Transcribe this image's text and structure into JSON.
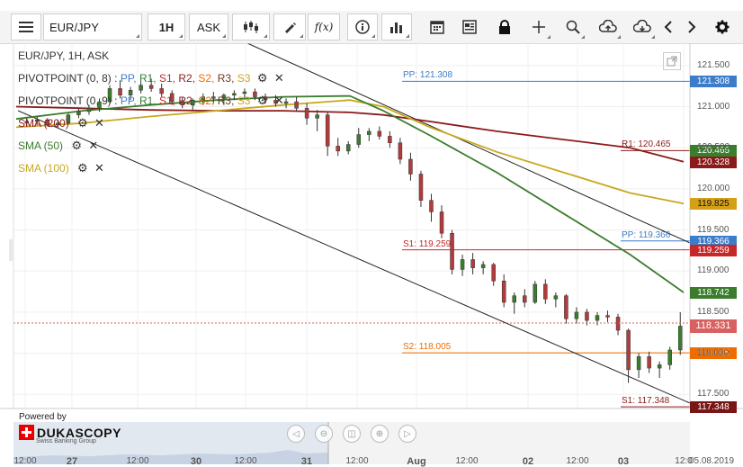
{
  "toolbar": {
    "instrument": "EUR/JPY",
    "timeframe": "1H",
    "side": "ASK",
    "indicator_icon_label": "f(x)"
  },
  "legend": {
    "title": "EUR/JPY, 1H, ASK",
    "pivots": [
      {
        "name": "PIVOTPOINT (0, 8)",
        "sep": " : ",
        "items": [
          "PP,",
          "R1,",
          "S1,",
          "R2,",
          "S2,",
          "R3,",
          "S3"
        ]
      },
      {
        "name": "PIVOTPOINT (0, 9)",
        "sep": " : ",
        "items": [
          "PP,",
          "R1,",
          "S1,",
          "R2,",
          "S2,",
          "R3,",
          "S3"
        ]
      }
    ],
    "smas": [
      {
        "label": "SMA (200)",
        "color": "#8b1a1a"
      },
      {
        "label": "SMA (50)",
        "color": "#3a7d2c"
      },
      {
        "label": "SMA (100)",
        "color": "#c9a820"
      }
    ]
  },
  "colors": {
    "pp": "#3d7cc9",
    "r1": "#2e7d32",
    "s1": "#c62828",
    "r2": "#8d1b1b",
    "s2": "#ef6c00",
    "r3": "#6d3b1e",
    "s3": "#d4a017",
    "sma200": "#8b1a1a",
    "sma50": "#3a7d2c",
    "sma100": "#c9a820",
    "bull": "#3a7d2c",
    "bear": "#b23b3b"
  },
  "pivot_levels": [
    {
      "text": "PP: 121.308",
      "value": 121.308,
      "color": "#3d7cc9"
    },
    {
      "text": "R1: 120.465",
      "value": 120.465,
      "color": "#8d1b1b"
    },
    {
      "text": "PP: 119.366",
      "value": 119.366,
      "color": "#3d7cc9"
    },
    {
      "text": "S1: 119.259",
      "value": 119.259,
      "color": "#c62828"
    },
    {
      "text": "S2: 118.005",
      "value": 118.005,
      "color": "#ef6c00"
    },
    {
      "text": "S1: 117.348",
      "value": 117.348,
      "color": "#8d1b1b"
    }
  ],
  "price_tags": [
    {
      "text": "121.308",
      "value": 121.308,
      "bg": "#3d7cc9",
      "fg": "#ffffff"
    },
    {
      "text": "120.465",
      "value": 120.465,
      "bg": "#3a7d2c",
      "fg": "#ffffff"
    },
    {
      "text": "120.328",
      "value": 120.328,
      "bg": "#8b1a1a",
      "fg": "#ffffff"
    },
    {
      "text": "119.825",
      "value": 119.825,
      "bg": "#d4a017",
      "fg": "#111111"
    },
    {
      "text": "119.366",
      "value": 119.366,
      "bg": "#3d7cc9",
      "fg": "#ffffff"
    },
    {
      "text": "119.259",
      "value": 119.259,
      "bg": "#c62828",
      "fg": "#ffffff"
    },
    {
      "text": "118.742",
      "value": 118.742,
      "bg": "#3a7d2c",
      "fg": "#ffffff"
    },
    {
      "text": "118.331",
      "value": 118.331,
      "bg": "#d96060",
      "fg": "#ffffff"
    },
    {
      "text": "118.005",
      "value": 118.005,
      "bg": "#ef6c00",
      "fg": "#ffffff"
    },
    {
      "text": "117.348",
      "value": 117.348,
      "bg": "#7a1515",
      "fg": "#ffffff"
    }
  ],
  "y_axis": {
    "ticks": [
      "121.500",
      "121.000",
      "120.500",
      "120.000",
      "119.500",
      "119.000",
      "118.500",
      "118.000",
      "117.500"
    ],
    "tick_values": [
      121.5,
      121.0,
      120.5,
      120.0,
      119.5,
      119.0,
      118.5,
      118.0,
      117.5
    ],
    "range": [
      117.35,
      121.75
    ]
  },
  "x_axis": {
    "labels": [
      "12:00",
      "27",
      "12:00",
      "30",
      "12:00",
      "31",
      "12:00",
      "Aug",
      "12:00",
      "02",
      "12:00",
      "03",
      "12:0",
      "05.08.2019"
    ],
    "bold": [
      false,
      true,
      false,
      true,
      false,
      true,
      false,
      true,
      false,
      true,
      false,
      true,
      false,
      false
    ]
  },
  "branding": {
    "powered_by": "Powered by",
    "brand": "DUKASCOPY",
    "tagline": "Swiss Banking Group"
  },
  "chart_data": {
    "type": "candlestick",
    "current_price": 118.331,
    "sma200": [
      121.0,
      120.98,
      120.96,
      120.95,
      120.95,
      120.93,
      120.9,
      120.82,
      120.7,
      120.6,
      120.5,
      120.33
    ],
    "sma50": [
      120.85,
      120.95,
      121.02,
      121.08,
      121.12,
      121.13,
      120.95,
      120.65,
      120.2,
      119.7,
      119.2,
      118.74
    ],
    "sma100": [
      120.75,
      120.8,
      120.88,
      120.95,
      121.02,
      121.08,
      121.0,
      120.75,
      120.45,
      120.2,
      119.95,
      119.82
    ],
    "sma_x_frac": [
      0.0,
      0.1,
      0.2,
      0.3,
      0.4,
      0.5,
      0.55,
      0.62,
      0.72,
      0.82,
      0.92,
      1.0
    ],
    "candles": [
      [
        120.8,
        120.86,
        120.76,
        120.82
      ],
      [
        120.82,
        120.88,
        120.79,
        120.84
      ],
      [
        120.84,
        120.86,
        120.76,
        120.78
      ],
      [
        120.78,
        120.84,
        120.74,
        120.8
      ],
      [
        120.8,
        120.92,
        120.78,
        120.9
      ],
      [
        120.9,
        120.98,
        120.86,
        120.94
      ],
      [
        120.94,
        121.02,
        120.9,
        120.98
      ],
      [
        120.98,
        121.1,
        120.94,
        121.06
      ],
      [
        121.06,
        121.26,
        121.04,
        121.22
      ],
      [
        121.22,
        121.32,
        121.1,
        121.14
      ],
      [
        121.14,
        121.24,
        121.08,
        121.2
      ],
      [
        121.2,
        121.3,
        121.16,
        121.26
      ],
      [
        121.26,
        121.34,
        121.18,
        121.22
      ],
      [
        121.22,
        121.28,
        121.12,
        121.16
      ],
      [
        121.16,
        121.2,
        121.02,
        121.06
      ],
      [
        121.06,
        121.12,
        120.98,
        121.02
      ],
      [
        121.02,
        121.1,
        120.96,
        121.08
      ],
      [
        121.08,
        121.16,
        121.02,
        121.12
      ],
      [
        121.12,
        121.18,
        121.04,
        121.1
      ],
      [
        121.1,
        121.16,
        121.02,
        121.14
      ],
      [
        121.14,
        121.2,
        121.08,
        121.16
      ],
      [
        121.16,
        121.22,
        121.1,
        121.18
      ],
      [
        121.18,
        121.22,
        121.08,
        121.12
      ],
      [
        121.12,
        121.16,
        121.04,
        121.08
      ],
      [
        121.08,
        121.14,
        121.0,
        121.04
      ],
      [
        121.04,
        121.1,
        120.98,
        121.06
      ],
      [
        121.06,
        121.12,
        120.94,
        120.98
      ],
      [
        120.98,
        121.04,
        120.78,
        120.86
      ],
      [
        120.86,
        120.96,
        120.7,
        120.9
      ],
      [
        120.9,
        120.94,
        120.4,
        120.52
      ],
      [
        120.52,
        120.62,
        120.4,
        120.46
      ],
      [
        120.46,
        120.58,
        120.42,
        120.54
      ],
      [
        120.54,
        120.74,
        120.5,
        120.66
      ],
      [
        120.66,
        120.74,
        120.58,
        120.7
      ],
      [
        120.7,
        120.76,
        120.6,
        120.64
      ],
      [
        120.64,
        120.7,
        120.5,
        120.56
      ],
      [
        120.56,
        120.62,
        120.3,
        120.36
      ],
      [
        120.36,
        120.44,
        120.1,
        120.18
      ],
      [
        120.18,
        120.22,
        119.78,
        119.86
      ],
      [
        119.86,
        119.94,
        119.6,
        119.72
      ],
      [
        119.72,
        119.8,
        119.4,
        119.46
      ],
      [
        119.46,
        119.5,
        118.96,
        119.02
      ],
      [
        119.02,
        119.2,
        118.94,
        119.14
      ],
      [
        119.14,
        119.22,
        118.96,
        119.04
      ],
      [
        119.04,
        119.12,
        118.96,
        119.08
      ],
      [
        119.08,
        119.1,
        118.82,
        118.88
      ],
      [
        118.88,
        118.96,
        118.56,
        118.62
      ],
      [
        118.62,
        118.74,
        118.48,
        118.7
      ],
      [
        118.7,
        118.78,
        118.56,
        118.62
      ],
      [
        118.62,
        118.88,
        118.6,
        118.84
      ],
      [
        118.84,
        118.9,
        118.6,
        118.66
      ],
      [
        118.66,
        118.74,
        118.56,
        118.7
      ],
      [
        118.7,
        118.72,
        118.36,
        118.42
      ],
      [
        118.42,
        118.56,
        118.36,
        118.5
      ],
      [
        118.5,
        118.54,
        118.34,
        118.4
      ],
      [
        118.4,
        118.5,
        118.34,
        118.46
      ],
      [
        118.46,
        118.52,
        118.38,
        118.44
      ],
      [
        118.44,
        118.48,
        118.22,
        118.28
      ],
      [
        118.28,
        118.3,
        117.64,
        117.8
      ],
      [
        117.8,
        118.0,
        117.7,
        117.96
      ],
      [
        117.96,
        118.02,
        117.76,
        117.82
      ],
      [
        117.82,
        117.9,
        117.7,
        117.86
      ],
      [
        117.86,
        118.08,
        117.8,
        118.04
      ],
      [
        118.04,
        118.5,
        117.98,
        118.33
      ]
    ]
  }
}
